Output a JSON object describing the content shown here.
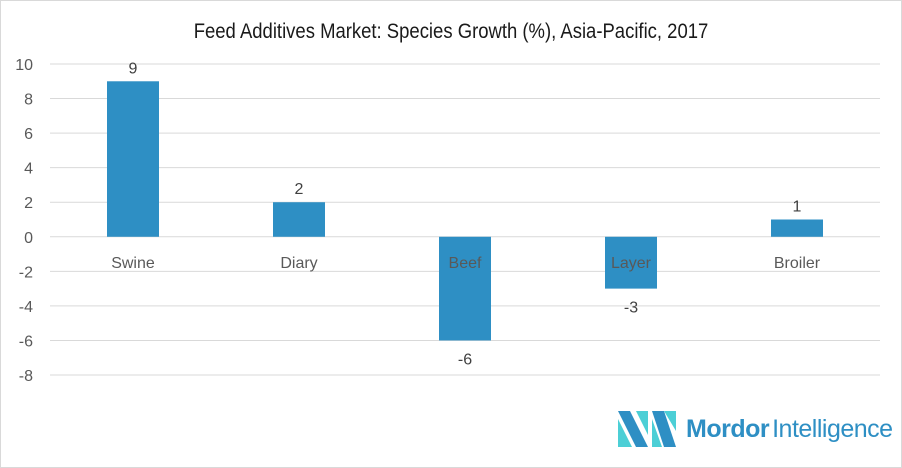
{
  "chart_data": {
    "type": "bar",
    "title": "Feed Additives Market: Species Growth (%), Asia-Pacific, 2017",
    "categories": [
      "Swine",
      "Diary",
      "Beef",
      "Layer",
      "Broiler"
    ],
    "values": [
      9,
      2,
      -6,
      -3,
      1
    ],
    "xlabel": "",
    "ylabel": "",
    "ylim": [
      -8,
      10
    ],
    "yticks": [
      10,
      8,
      6,
      4,
      2,
      0,
      -2,
      -4,
      -6,
      -8
    ],
    "grid": true,
    "bar_color": "#2e8fc4"
  },
  "logo": {
    "name_bold": "Mordor",
    "name_light": "Intelligence"
  }
}
